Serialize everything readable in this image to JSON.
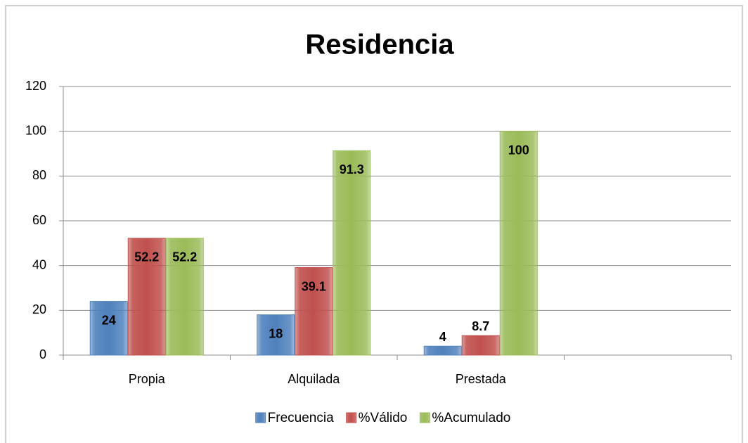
{
  "chart_data": {
    "type": "bar",
    "title": "Residencia",
    "categories": [
      "Propia",
      "Alquilada",
      "Prestada",
      null
    ],
    "series": [
      {
        "name": "Frecuencia",
        "color": "#4f81bd",
        "values": [
          24,
          18,
          4,
          null
        ]
      },
      {
        "name": "%Válido",
        "color": "#c0504d",
        "values": [
          52.2,
          39.1,
          8.7,
          null
        ]
      },
      {
        "name": "%Acumulado",
        "color": "#9bbb59",
        "values": [
          52.2,
          91.3,
          100,
          null
        ]
      }
    ],
    "ylim": [
      0,
      120
    ],
    "yticks": [
      0,
      20,
      40,
      60,
      80,
      100,
      120
    ],
    "grid": true,
    "legend": "bottom"
  }
}
